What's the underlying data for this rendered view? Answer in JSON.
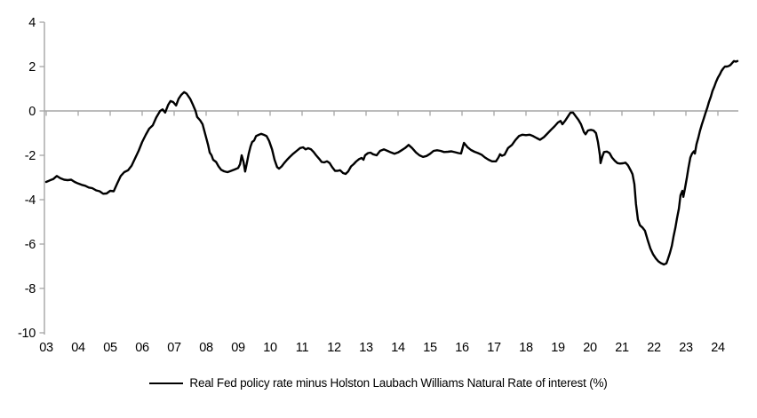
{
  "colors": {
    "background": "#ffffff",
    "axis": "#a6a6a6",
    "series_line": "#000000",
    "text": "#000000"
  },
  "chart_data": {
    "type": "line",
    "title": "",
    "legend_position": "bottom",
    "grid": false,
    "zero_line": true,
    "x_axis": {
      "labels": [
        "03",
        "04",
        "05",
        "06",
        "07",
        "08",
        "09",
        "10",
        "11",
        "12",
        "13",
        "14",
        "15",
        "16",
        "17",
        "18",
        "19",
        "20",
        "21",
        "22",
        "23",
        "24"
      ],
      "start_year": 2003,
      "end_year": 2024.65
    },
    "y_axis": {
      "ticks": [
        4,
        2,
        0,
        -2,
        -4,
        -6,
        -8,
        -10
      ],
      "min": -10,
      "max": 4
    },
    "series": [
      {
        "name": "Real Fed policy rate minus Holston Laubach Williams Natural Rate of interest (%)",
        "color": "#000000",
        "points": [
          [
            2003.0,
            -3.2
          ],
          [
            2003.11,
            -3.13
          ],
          [
            2003.22,
            -3.07
          ],
          [
            2003.33,
            -2.93
          ],
          [
            2003.44,
            -3.03
          ],
          [
            2003.56,
            -3.1
          ],
          [
            2003.67,
            -3.12
          ],
          [
            2003.78,
            -3.1
          ],
          [
            2003.89,
            -3.2
          ],
          [
            2004.0,
            -3.27
          ],
          [
            2004.11,
            -3.33
          ],
          [
            2004.22,
            -3.37
          ],
          [
            2004.33,
            -3.45
          ],
          [
            2004.44,
            -3.48
          ],
          [
            2004.56,
            -3.58
          ],
          [
            2004.67,
            -3.62
          ],
          [
            2004.78,
            -3.73
          ],
          [
            2004.89,
            -3.72
          ],
          [
            2005.0,
            -3.6
          ],
          [
            2005.11,
            -3.62
          ],
          [
            2005.22,
            -3.27
          ],
          [
            2005.33,
            -2.93
          ],
          [
            2005.44,
            -2.76
          ],
          [
            2005.56,
            -2.67
          ],
          [
            2005.67,
            -2.47
          ],
          [
            2005.78,
            -2.13
          ],
          [
            2005.89,
            -1.8
          ],
          [
            2006.0,
            -1.4
          ],
          [
            2006.11,
            -1.08
          ],
          [
            2006.22,
            -0.8
          ],
          [
            2006.33,
            -0.65
          ],
          [
            2006.44,
            -0.3
          ],
          [
            2006.56,
            0.0
          ],
          [
            2006.64,
            0.07
          ],
          [
            2006.72,
            -0.07
          ],
          [
            2006.81,
            0.27
          ],
          [
            2006.89,
            0.45
          ],
          [
            2006.97,
            0.4
          ],
          [
            2007.06,
            0.25
          ],
          [
            2007.14,
            0.55
          ],
          [
            2007.22,
            0.72
          ],
          [
            2007.31,
            0.85
          ],
          [
            2007.39,
            0.78
          ],
          [
            2007.5,
            0.55
          ],
          [
            2007.58,
            0.3
          ],
          [
            2007.67,
            0.0
          ],
          [
            2007.72,
            -0.27
          ],
          [
            2007.81,
            -0.42
          ],
          [
            2007.89,
            -0.6
          ],
          [
            2007.94,
            -0.87
          ],
          [
            2008.0,
            -1.2
          ],
          [
            2008.06,
            -1.53
          ],
          [
            2008.11,
            -1.87
          ],
          [
            2008.17,
            -2.0
          ],
          [
            2008.22,
            -2.2
          ],
          [
            2008.31,
            -2.3
          ],
          [
            2008.39,
            -2.5
          ],
          [
            2008.47,
            -2.65
          ],
          [
            2008.56,
            -2.72
          ],
          [
            2008.67,
            -2.76
          ],
          [
            2008.78,
            -2.7
          ],
          [
            2008.89,
            -2.64
          ],
          [
            2009.0,
            -2.57
          ],
          [
            2009.06,
            -2.4
          ],
          [
            2009.11,
            -2.0
          ],
          [
            2009.17,
            -2.3
          ],
          [
            2009.22,
            -2.73
          ],
          [
            2009.28,
            -2.3
          ],
          [
            2009.33,
            -1.93
          ],
          [
            2009.39,
            -1.6
          ],
          [
            2009.44,
            -1.4
          ],
          [
            2009.5,
            -1.33
          ],
          [
            2009.56,
            -1.13
          ],
          [
            2009.64,
            -1.08
          ],
          [
            2009.72,
            -1.03
          ],
          [
            2009.81,
            -1.08
          ],
          [
            2009.89,
            -1.13
          ],
          [
            2009.97,
            -1.35
          ],
          [
            2010.06,
            -1.73
          ],
          [
            2010.14,
            -2.2
          ],
          [
            2010.22,
            -2.53
          ],
          [
            2010.28,
            -2.6
          ],
          [
            2010.36,
            -2.5
          ],
          [
            2010.44,
            -2.35
          ],
          [
            2010.53,
            -2.2
          ],
          [
            2010.61,
            -2.08
          ],
          [
            2010.72,
            -1.93
          ],
          [
            2010.83,
            -1.8
          ],
          [
            2010.94,
            -1.67
          ],
          [
            2011.03,
            -1.64
          ],
          [
            2011.11,
            -1.73
          ],
          [
            2011.19,
            -1.68
          ],
          [
            2011.28,
            -1.73
          ],
          [
            2011.36,
            -1.85
          ],
          [
            2011.44,
            -2.0
          ],
          [
            2011.53,
            -2.15
          ],
          [
            2011.61,
            -2.3
          ],
          [
            2011.69,
            -2.32
          ],
          [
            2011.78,
            -2.27
          ],
          [
            2011.86,
            -2.35
          ],
          [
            2011.94,
            -2.53
          ],
          [
            2012.03,
            -2.7
          ],
          [
            2012.11,
            -2.7
          ],
          [
            2012.19,
            -2.67
          ],
          [
            2012.28,
            -2.8
          ],
          [
            2012.36,
            -2.84
          ],
          [
            2012.44,
            -2.73
          ],
          [
            2012.53,
            -2.5
          ],
          [
            2012.61,
            -2.4
          ],
          [
            2012.69,
            -2.28
          ],
          [
            2012.78,
            -2.17
          ],
          [
            2012.86,
            -2.12
          ],
          [
            2012.92,
            -2.2
          ],
          [
            2012.97,
            -2.0
          ],
          [
            2013.06,
            -1.9
          ],
          [
            2013.14,
            -1.88
          ],
          [
            2013.22,
            -1.95
          ],
          [
            2013.33,
            -2.0
          ],
          [
            2013.44,
            -1.8
          ],
          [
            2013.56,
            -1.73
          ],
          [
            2013.67,
            -1.8
          ],
          [
            2013.78,
            -1.87
          ],
          [
            2013.89,
            -1.93
          ],
          [
            2014.0,
            -1.87
          ],
          [
            2014.11,
            -1.77
          ],
          [
            2014.22,
            -1.67
          ],
          [
            2014.33,
            -1.53
          ],
          [
            2014.44,
            -1.67
          ],
          [
            2014.56,
            -1.87
          ],
          [
            2014.67,
            -2.0
          ],
          [
            2014.78,
            -2.07
          ],
          [
            2014.89,
            -2.03
          ],
          [
            2015.0,
            -1.93
          ],
          [
            2015.11,
            -1.8
          ],
          [
            2015.22,
            -1.77
          ],
          [
            2015.33,
            -1.8
          ],
          [
            2015.44,
            -1.85
          ],
          [
            2015.56,
            -1.84
          ],
          [
            2015.67,
            -1.82
          ],
          [
            2015.78,
            -1.86
          ],
          [
            2015.89,
            -1.9
          ],
          [
            2015.97,
            -1.92
          ],
          [
            2016.06,
            -1.44
          ],
          [
            2016.17,
            -1.63
          ],
          [
            2016.28,
            -1.76
          ],
          [
            2016.39,
            -1.84
          ],
          [
            2016.5,
            -1.9
          ],
          [
            2016.61,
            -1.97
          ],
          [
            2016.72,
            -2.1
          ],
          [
            2016.83,
            -2.2
          ],
          [
            2016.94,
            -2.27
          ],
          [
            2017.06,
            -2.27
          ],
          [
            2017.14,
            -2.1
          ],
          [
            2017.19,
            -1.95
          ],
          [
            2017.25,
            -2.02
          ],
          [
            2017.33,
            -1.97
          ],
          [
            2017.44,
            -1.67
          ],
          [
            2017.56,
            -1.53
          ],
          [
            2017.67,
            -1.31
          ],
          [
            2017.78,
            -1.13
          ],
          [
            2017.89,
            -1.07
          ],
          [
            2018.0,
            -1.09
          ],
          [
            2018.11,
            -1.07
          ],
          [
            2018.22,
            -1.13
          ],
          [
            2018.33,
            -1.22
          ],
          [
            2018.44,
            -1.3
          ],
          [
            2018.56,
            -1.18
          ],
          [
            2018.67,
            -1.02
          ],
          [
            2018.78,
            -0.85
          ],
          [
            2018.89,
            -0.7
          ],
          [
            2019.0,
            -0.52
          ],
          [
            2019.08,
            -0.45
          ],
          [
            2019.14,
            -0.6
          ],
          [
            2019.22,
            -0.45
          ],
          [
            2019.31,
            -0.25
          ],
          [
            2019.39,
            -0.08
          ],
          [
            2019.47,
            -0.07
          ],
          [
            2019.56,
            -0.25
          ],
          [
            2019.64,
            -0.4
          ],
          [
            2019.72,
            -0.6
          ],
          [
            2019.81,
            -0.95
          ],
          [
            2019.86,
            -1.05
          ],
          [
            2019.94,
            -0.88
          ],
          [
            2020.03,
            -0.85
          ],
          [
            2020.11,
            -0.88
          ],
          [
            2020.19,
            -1.0
          ],
          [
            2020.25,
            -1.4
          ],
          [
            2020.31,
            -2.0
          ],
          [
            2020.33,
            -2.35
          ],
          [
            2020.39,
            -2.05
          ],
          [
            2020.44,
            -1.85
          ],
          [
            2020.53,
            -1.83
          ],
          [
            2020.61,
            -1.9
          ],
          [
            2020.69,
            -2.1
          ],
          [
            2020.78,
            -2.25
          ],
          [
            2020.86,
            -2.35
          ],
          [
            2020.94,
            -2.37
          ],
          [
            2021.03,
            -2.36
          ],
          [
            2021.11,
            -2.33
          ],
          [
            2021.19,
            -2.45
          ],
          [
            2021.28,
            -2.7
          ],
          [
            2021.33,
            -2.85
          ],
          [
            2021.39,
            -3.3
          ],
          [
            2021.44,
            -4.2
          ],
          [
            2021.5,
            -4.9
          ],
          [
            2021.56,
            -5.15
          ],
          [
            2021.64,
            -5.25
          ],
          [
            2021.72,
            -5.4
          ],
          [
            2021.81,
            -5.85
          ],
          [
            2021.89,
            -6.2
          ],
          [
            2021.97,
            -6.45
          ],
          [
            2022.06,
            -6.65
          ],
          [
            2022.14,
            -6.78
          ],
          [
            2022.22,
            -6.86
          ],
          [
            2022.31,
            -6.92
          ],
          [
            2022.39,
            -6.87
          ],
          [
            2022.44,
            -6.67
          ],
          [
            2022.5,
            -6.4
          ],
          [
            2022.56,
            -6.07
          ],
          [
            2022.61,
            -5.67
          ],
          [
            2022.67,
            -5.27
          ],
          [
            2022.72,
            -4.85
          ],
          [
            2022.78,
            -4.4
          ],
          [
            2022.83,
            -3.8
          ],
          [
            2022.89,
            -3.6
          ],
          [
            2022.92,
            -3.87
          ],
          [
            2022.97,
            -3.5
          ],
          [
            2023.03,
            -3.0
          ],
          [
            2023.08,
            -2.55
          ],
          [
            2023.14,
            -2.1
          ],
          [
            2023.19,
            -1.93
          ],
          [
            2023.25,
            -1.82
          ],
          [
            2023.28,
            -1.92
          ],
          [
            2023.33,
            -1.5
          ],
          [
            2023.39,
            -1.2
          ],
          [
            2023.44,
            -0.9
          ],
          [
            2023.5,
            -0.6
          ],
          [
            2023.56,
            -0.33
          ],
          [
            2023.61,
            -0.1
          ],
          [
            2023.67,
            0.15
          ],
          [
            2023.72,
            0.4
          ],
          [
            2023.78,
            0.65
          ],
          [
            2023.83,
            0.9
          ],
          [
            2023.89,
            1.1
          ],
          [
            2023.94,
            1.3
          ],
          [
            2024.0,
            1.5
          ],
          [
            2024.06,
            1.65
          ],
          [
            2024.11,
            1.8
          ],
          [
            2024.17,
            1.92
          ],
          [
            2024.22,
            2.0
          ],
          [
            2024.28,
            2.0
          ],
          [
            2024.33,
            2.02
          ],
          [
            2024.39,
            2.07
          ],
          [
            2024.44,
            2.15
          ],
          [
            2024.5,
            2.25
          ],
          [
            2024.56,
            2.22
          ],
          [
            2024.61,
            2.25
          ]
        ]
      }
    ]
  }
}
